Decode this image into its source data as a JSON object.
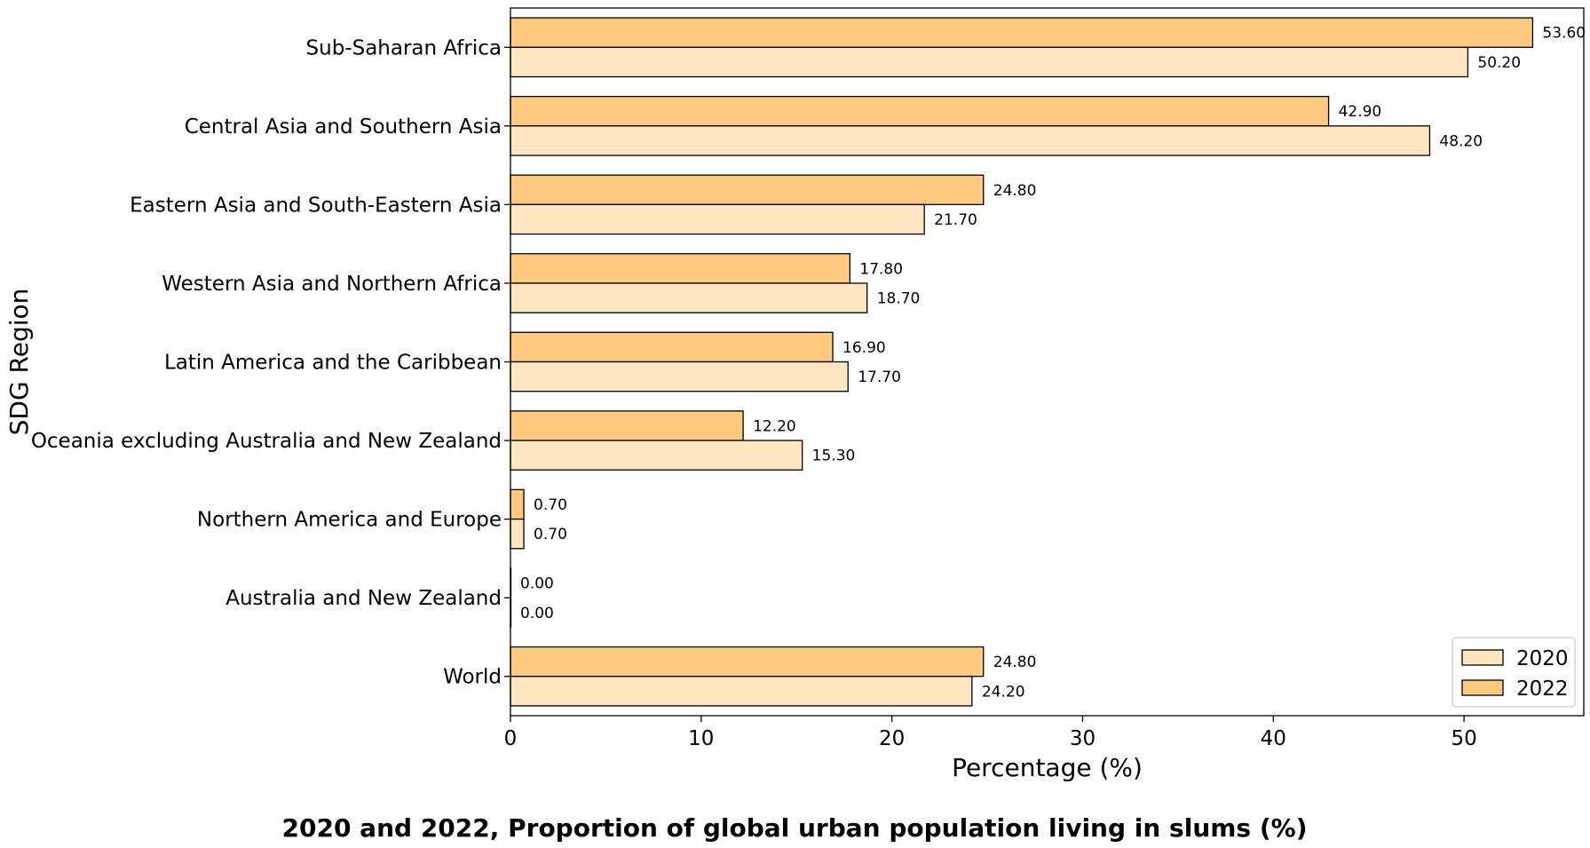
{
  "chart_data": {
    "type": "bar",
    "orientation": "horizontal",
    "title": "2020 and 2022, Proportion of global urban population living in slums (%)",
    "xlabel": "Percentage (%)",
    "ylabel": "SDG Region",
    "xlim": [
      0,
      56.28
    ],
    "xticks": [
      0,
      10,
      20,
      30,
      40,
      50
    ],
    "grid": false,
    "legend_position": "bottom-right",
    "categories": [
      "Sub-Saharan Africa",
      "Central Asia and Southern Asia",
      "Eastern Asia and South-Eastern Asia",
      "Western Asia and Northern Africa",
      "Latin America and the Caribbean",
      "Oceania excluding Australia and New Zealand",
      "Northern America and Europe",
      "Australia and New Zealand",
      "World"
    ],
    "series": [
      {
        "name": "2020",
        "color": "#ffe6c1",
        "values": [
          50.2,
          48.2,
          21.7,
          18.7,
          17.7,
          15.3,
          0.7,
          0.0,
          24.2
        ],
        "labels": [
          "50.20",
          "48.20",
          "21.70",
          "18.70",
          "17.70",
          "15.30",
          "0.70",
          "0.00",
          "24.20"
        ]
      },
      {
        "name": "2022",
        "color": "#ffc97f",
        "values": [
          53.6,
          42.9,
          24.8,
          17.8,
          16.9,
          12.2,
          0.7,
          0.0,
          24.8
        ],
        "labels": [
          "53.60",
          "42.90",
          "24.80",
          "17.80",
          "16.90",
          "12.20",
          "0.70",
          "0.00",
          "24.80"
        ]
      }
    ]
  }
}
